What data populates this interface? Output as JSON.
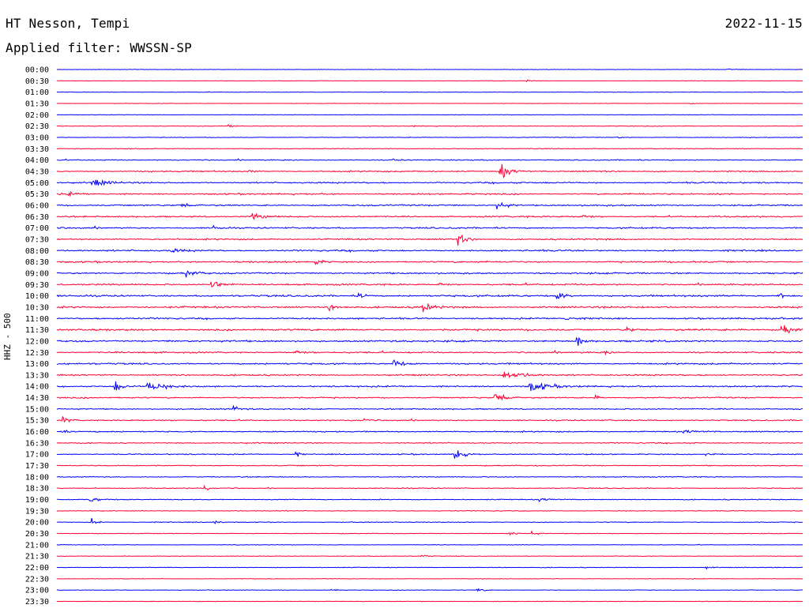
{
  "header": {
    "station": "HT Nesson, Tempi",
    "date": "2022-11-15",
    "filter": "Applied filter: WWSSN-SP"
  },
  "chart_data": {
    "type": "line",
    "title": "HT Nesson, Tempi",
    "subtitle": "Applied filter: WWSSN-SP",
    "date": "2022-11-15",
    "ylabel": "HHZ - 500",
    "xlabel": "",
    "row_labels": [
      "00:00",
      "00:30",
      "01:00",
      "01:30",
      "02:00",
      "02:30",
      "03:00",
      "03:30",
      "04:00",
      "04:30",
      "05:00",
      "05:30",
      "06:00",
      "06:30",
      "07:00",
      "07:30",
      "08:00",
      "08:30",
      "09:00",
      "09:30",
      "10:00",
      "10:30",
      "11:00",
      "11:30",
      "12:00",
      "12:30",
      "13:00",
      "13:30",
      "14:00",
      "14:30",
      "15:00",
      "15:30",
      "16:00",
      "16:30",
      "17:00",
      "17:30",
      "18:00",
      "18:30",
      "19:00",
      "19:30",
      "20:00",
      "20:30",
      "21:00",
      "21:30",
      "22:00",
      "22:30",
      "23:00",
      "23:30"
    ],
    "row_minutes": 30,
    "colors": [
      "#0000ff",
      "#ff0033"
    ],
    "noise_levels": [
      0.4,
      0.4,
      0.4,
      0.4,
      0.4,
      0.5,
      0.6,
      0.7,
      0.9,
      1.2,
      1.3,
      1.3,
      1.3,
      1.3,
      1.3,
      1.3,
      1.4,
      1.4,
      1.4,
      1.4,
      1.6,
      1.6,
      1.4,
      1.6,
      1.6,
      1.3,
      1.4,
      1.3,
      1.3,
      1.2,
      1.1,
      1.1,
      1.1,
      1.0,
      1.0,
      0.9,
      0.8,
      0.8,
      0.8,
      0.7,
      0.7,
      0.6,
      0.5,
      0.5,
      0.6,
      0.5,
      0.5,
      0.5
    ],
    "events": [
      {
        "row": "00:00",
        "minute": 27.0,
        "amp": 1.5,
        "dur": 0.4
      },
      {
        "row": "00:30",
        "minute": 18.9,
        "amp": 2,
        "dur": 0.3
      },
      {
        "row": "01:30",
        "minute": 25.5,
        "amp": 1.5,
        "dur": 0.4
      },
      {
        "row": "02:30",
        "minute": 6.9,
        "amp": 3,
        "dur": 0.4
      },
      {
        "row": "02:30",
        "minute": 14.3,
        "amp": 1.5,
        "dur": 0.3
      },
      {
        "row": "03:00",
        "minute": 22.5,
        "amp": 2,
        "dur": 0.4
      },
      {
        "row": "04:00",
        "minute": 13.5,
        "amp": 2,
        "dur": 0.4
      },
      {
        "row": "04:30",
        "minute": 7.7,
        "amp": 4,
        "dur": 0.3
      },
      {
        "row": "04:30",
        "minute": 17.8,
        "amp": 16,
        "dur": 0.6
      },
      {
        "row": "05:00",
        "minute": 1.4,
        "amp": 8,
        "dur": 0.8
      },
      {
        "row": "05:30",
        "minute": 0.4,
        "amp": 4,
        "dur": 0.5
      },
      {
        "row": "05:30",
        "minute": 26.5,
        "amp": 4,
        "dur": 0.4
      },
      {
        "row": "06:00",
        "minute": 5.0,
        "amp": 4,
        "dur": 0.5
      },
      {
        "row": "06:00",
        "minute": 17.7,
        "amp": 11,
        "dur": 0.5
      },
      {
        "row": "06:30",
        "minute": 7.8,
        "amp": 6,
        "dur": 0.9
      },
      {
        "row": "06:30",
        "minute": 21.0,
        "amp": 4,
        "dur": 0.6
      },
      {
        "row": "07:00",
        "minute": 6.3,
        "amp": 4,
        "dur": 0.4
      },
      {
        "row": "07:30",
        "minute": 16.1,
        "amp": 12,
        "dur": 0.5
      },
      {
        "row": "08:00",
        "minute": 4.6,
        "amp": 3,
        "dur": 1.0
      },
      {
        "row": "08:30",
        "minute": 10.4,
        "amp": 6,
        "dur": 0.4
      },
      {
        "row": "09:00",
        "minute": 5.2,
        "amp": 9,
        "dur": 0.5
      },
      {
        "row": "09:30",
        "minute": 6.2,
        "amp": 10,
        "dur": 0.6
      },
      {
        "row": "09:30",
        "minute": 15.3,
        "amp": 4,
        "dur": 0.5
      },
      {
        "row": "10:00",
        "minute": 12.1,
        "amp": 5,
        "dur": 0.5
      },
      {
        "row": "10:00",
        "minute": 20.1,
        "amp": 7,
        "dur": 0.6
      },
      {
        "row": "10:00",
        "minute": 29.0,
        "amp": 14,
        "dur": 0.3
      },
      {
        "row": "10:30",
        "minute": 10.9,
        "amp": 7,
        "dur": 0.6
      },
      {
        "row": "10:30",
        "minute": 14.7,
        "amp": 10,
        "dur": 0.5
      },
      {
        "row": "11:00",
        "minute": 20.4,
        "amp": 4,
        "dur": 0.5
      },
      {
        "row": "11:30",
        "minute": 22.9,
        "amp": 6,
        "dur": 0.4
      },
      {
        "row": "11:30",
        "minute": 29.1,
        "amp": 12,
        "dur": 0.8
      },
      {
        "row": "12:00",
        "minute": 20.9,
        "amp": 14,
        "dur": 0.3
      },
      {
        "row": "12:30",
        "minute": 9.5,
        "amp": 5,
        "dur": 0.5
      },
      {
        "row": "12:30",
        "minute": 22.0,
        "amp": 3,
        "dur": 0.4
      },
      {
        "row": "13:00",
        "minute": 13.5,
        "amp": 11,
        "dur": 0.5
      },
      {
        "row": "13:30",
        "minute": 17.9,
        "amp": 9,
        "dur": 1.3
      },
      {
        "row": "14:00",
        "minute": 2.3,
        "amp": 13,
        "dur": 0.4
      },
      {
        "row": "14:00",
        "minute": 3.6,
        "amp": 8,
        "dur": 1.1
      },
      {
        "row": "14:00",
        "minute": 19.0,
        "amp": 10,
        "dur": 1.1
      },
      {
        "row": "14:30",
        "minute": 17.6,
        "amp": 11,
        "dur": 0.6
      },
      {
        "row": "14:30",
        "minute": 21.6,
        "amp": 5,
        "dur": 0.3
      },
      {
        "row": "15:00",
        "minute": 7.1,
        "amp": 5,
        "dur": 0.4
      },
      {
        "row": "15:30",
        "minute": 0.2,
        "amp": 8,
        "dur": 0.4
      },
      {
        "row": "15:30",
        "minute": 12.3,
        "amp": 5,
        "dur": 0.3
      },
      {
        "row": "16:00",
        "minute": 0.1,
        "amp": 6,
        "dur": 0.3
      },
      {
        "row": "16:00",
        "minute": 25.2,
        "amp": 4,
        "dur": 0.6
      },
      {
        "row": "17:00",
        "minute": 9.6,
        "amp": 5,
        "dur": 0.3
      },
      {
        "row": "17:00",
        "minute": 16.0,
        "amp": 15,
        "dur": 0.5
      },
      {
        "row": "17:00",
        "minute": 26.1,
        "amp": 4,
        "dur": 0.4
      },
      {
        "row": "18:30",
        "minute": 5.9,
        "amp": 6,
        "dur": 0.3
      },
      {
        "row": "19:00",
        "minute": 1.3,
        "amp": 5,
        "dur": 0.6
      },
      {
        "row": "19:00",
        "minute": 19.4,
        "amp": 3,
        "dur": 0.6
      },
      {
        "row": "20:00",
        "minute": 1.4,
        "amp": 6,
        "dur": 0.3
      },
      {
        "row": "20:00",
        "minute": 6.3,
        "amp": 4,
        "dur": 0.3
      },
      {
        "row": "20:30",
        "minute": 18.2,
        "amp": 4,
        "dur": 0.4
      },
      {
        "row": "20:30",
        "minute": 19.1,
        "amp": 5,
        "dur": 0.3
      },
      {
        "row": "21:30",
        "minute": 14.6,
        "amp": 3,
        "dur": 0.4
      },
      {
        "row": "22:00",
        "minute": 26.1,
        "amp": 2,
        "dur": 0.4
      },
      {
        "row": "23:00",
        "minute": 11.0,
        "amp": 3,
        "dur": 0.4
      },
      {
        "row": "23:00",
        "minute": 16.9,
        "amp": 4,
        "dur": 0.4
      }
    ],
    "grid": false,
    "legend": "none"
  }
}
